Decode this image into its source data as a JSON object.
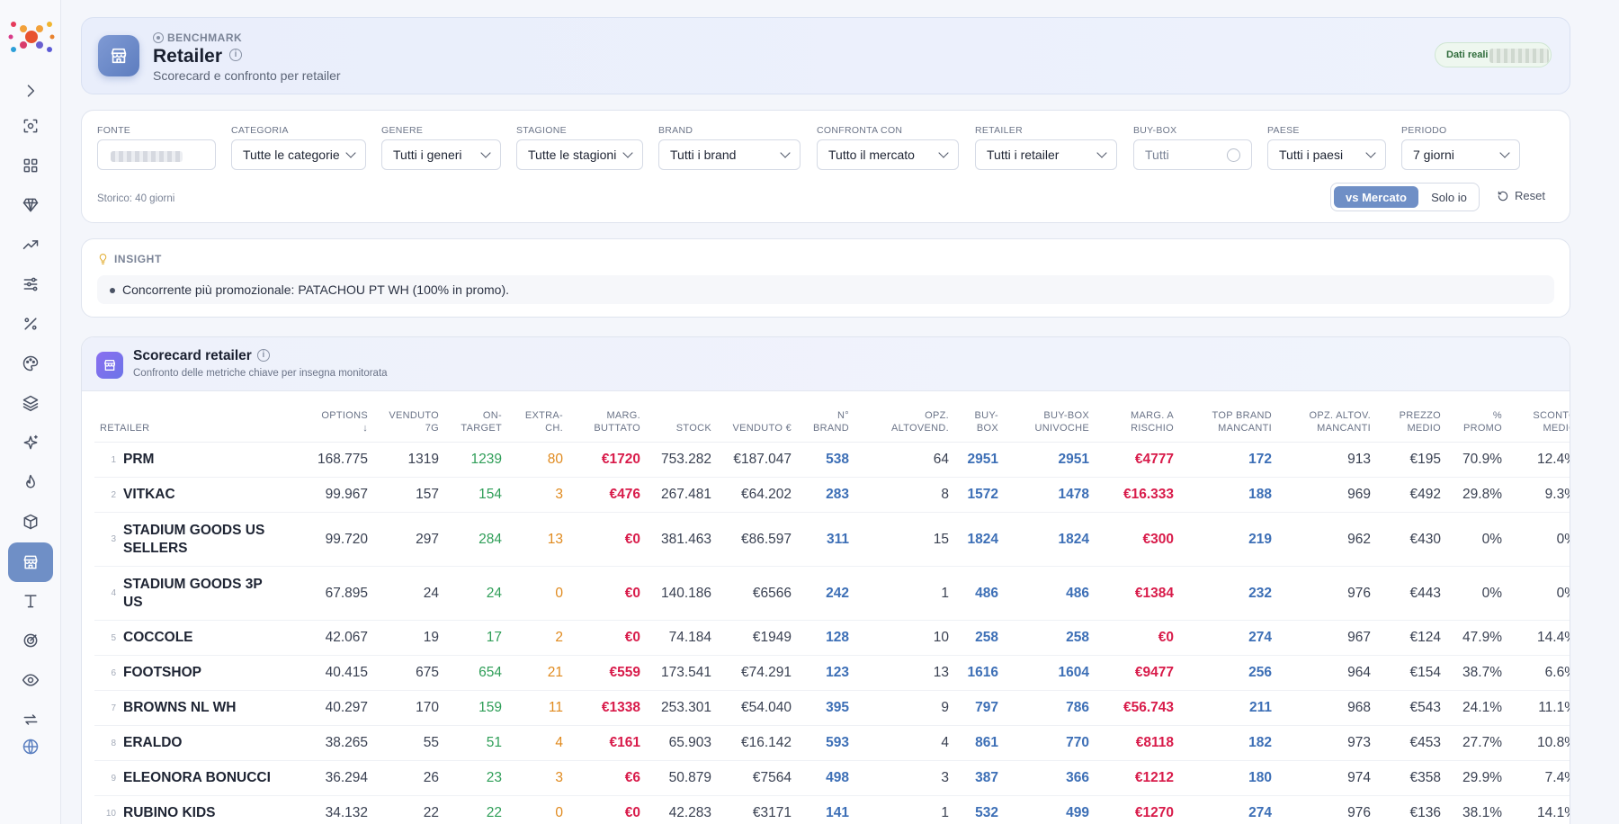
{
  "header": {
    "eyebrow": "BENCHMARK",
    "title": "Retailer",
    "subtitle": "Scorecard e confronto per retailer",
    "badge": "Dati reali"
  },
  "filters": {
    "fonte_label": "FONTE",
    "categoria": {
      "label": "CATEGORIA",
      "value": "Tutte le categorie"
    },
    "genere": {
      "label": "GENERE",
      "value": "Tutti i generi"
    },
    "stagione": {
      "label": "STAGIONE",
      "value": "Tutte le stagioni"
    },
    "brand": {
      "label": "BRAND",
      "value": "Tutti i brand"
    },
    "confronta": {
      "label": "CONFRONTA CON",
      "value": "Tutto il mercato"
    },
    "retailer": {
      "label": "RETAILER",
      "value": "Tutti i retailer"
    },
    "buybox": {
      "label": "BUY-BOX",
      "value": "Tutti"
    },
    "paese": {
      "label": "PAESE",
      "value": "Tutti i paesi"
    },
    "periodo": {
      "label": "PERIODO",
      "value": "7 giorni"
    },
    "storico": "Storico: 40 giorni",
    "toggle_on": "vs Mercato",
    "toggle_off": "Solo io",
    "reset": "Reset"
  },
  "insight": {
    "title": "INSIGHT",
    "text": "Concorrente più promozionale: PATACHOU PT WH (100% in promo)."
  },
  "scorecard": {
    "title": "Scorecard retailer",
    "subtitle": "Confronto delle metriche chiave per insegna monitorata",
    "columns": [
      [
        "RETAILER"
      ],
      [
        "OPTIONS",
        "↓"
      ],
      [
        "VENDUTO",
        "7G"
      ],
      [
        "ON-",
        "TARGET"
      ],
      [
        "EXTRA-",
        "CH."
      ],
      [
        "MARG.",
        "BUTTATO"
      ],
      [
        "STOCK"
      ],
      [
        "VENDUTO €"
      ],
      [
        "N°",
        "BRAND"
      ],
      [
        "OPZ.",
        "ALTOVEND."
      ],
      [
        "BUY-",
        "BOX"
      ],
      [
        "BUY-BOX",
        "UNIVOCHE"
      ],
      [
        "MARG. A",
        "RISCHIO"
      ],
      [
        "TOP BRAND",
        "MANCANTI"
      ],
      [
        "OPZ. ALTOV.",
        "MANCANTI"
      ],
      [
        "PREZZO",
        "MEDIO"
      ],
      [
        "%",
        "PROMO"
      ],
      [
        "SCONTO",
        "MEDIO"
      ]
    ],
    "rows": [
      {
        "rank": "1",
        "name": "PRM",
        "v": [
          "168.775",
          "1319",
          "1239",
          "80",
          "€1720",
          "753.282",
          "€187.047",
          "538",
          "64",
          "2951",
          "2951",
          "€4777",
          "172",
          "913",
          "€195",
          "70.9%",
          "12.4%"
        ]
      },
      {
        "rank": "2",
        "name": "VITKAC",
        "v": [
          "99.967",
          "157",
          "154",
          "3",
          "€476",
          "267.481",
          "€64.202",
          "283",
          "8",
          "1572",
          "1478",
          "€16.333",
          "188",
          "969",
          "€492",
          "29.8%",
          "9.3%"
        ]
      },
      {
        "rank": "3",
        "name": "STADIUM GOODS US SELLERS",
        "v": [
          "99.720",
          "297",
          "284",
          "13",
          "€0",
          "381.463",
          "€86.597",
          "311",
          "15",
          "1824",
          "1824",
          "€300",
          "219",
          "962",
          "€430",
          "0%",
          "0%"
        ]
      },
      {
        "rank": "4",
        "name": "STADIUM GOODS 3P US",
        "v": [
          "67.895",
          "24",
          "24",
          "0",
          "€0",
          "140.186",
          "€6566",
          "242",
          "1",
          "486",
          "486",
          "€1384",
          "232",
          "976",
          "€443",
          "0%",
          "0%"
        ]
      },
      {
        "rank": "5",
        "name": "COCCOLE",
        "v": [
          "42.067",
          "19",
          "17",
          "2",
          "€0",
          "74.184",
          "€1949",
          "128",
          "10",
          "258",
          "258",
          "€0",
          "274",
          "967",
          "€124",
          "47.9%",
          "14.4%"
        ]
      },
      {
        "rank": "6",
        "name": "FOOTSHOP",
        "v": [
          "40.415",
          "675",
          "654",
          "21",
          "€559",
          "173.541",
          "€74.291",
          "123",
          "13",
          "1616",
          "1604",
          "€9477",
          "256",
          "964",
          "€154",
          "38.7%",
          "6.6%"
        ]
      },
      {
        "rank": "7",
        "name": "BROWNS NL WH",
        "v": [
          "40.297",
          "170",
          "159",
          "11",
          "€1338",
          "253.301",
          "€54.040",
          "395",
          "9",
          "797",
          "786",
          "€56.743",
          "211",
          "968",
          "€543",
          "24.1%",
          "11.1%"
        ]
      },
      {
        "rank": "8",
        "name": "ERALDO",
        "v": [
          "38.265",
          "55",
          "51",
          "4",
          "€161",
          "65.903",
          "€16.142",
          "593",
          "4",
          "861",
          "770",
          "€8118",
          "182",
          "973",
          "€453",
          "27.7%",
          "10.8%"
        ]
      },
      {
        "rank": "9",
        "name": "ELEONORA BONUCCI",
        "v": [
          "36.294",
          "26",
          "23",
          "3",
          "€6",
          "50.879",
          "€7564",
          "498",
          "3",
          "387",
          "366",
          "€1212",
          "180",
          "974",
          "€358",
          "29.9%",
          "7.4%"
        ]
      },
      {
        "rank": "10",
        "name": "RUBINO KIDS",
        "v": [
          "34.132",
          "22",
          "22",
          "0",
          "€0",
          "42.283",
          "€3171",
          "141",
          "1",
          "532",
          "499",
          "€1270",
          "274",
          "976",
          "€136",
          "38.1%",
          "14.1%"
        ]
      }
    ]
  }
}
